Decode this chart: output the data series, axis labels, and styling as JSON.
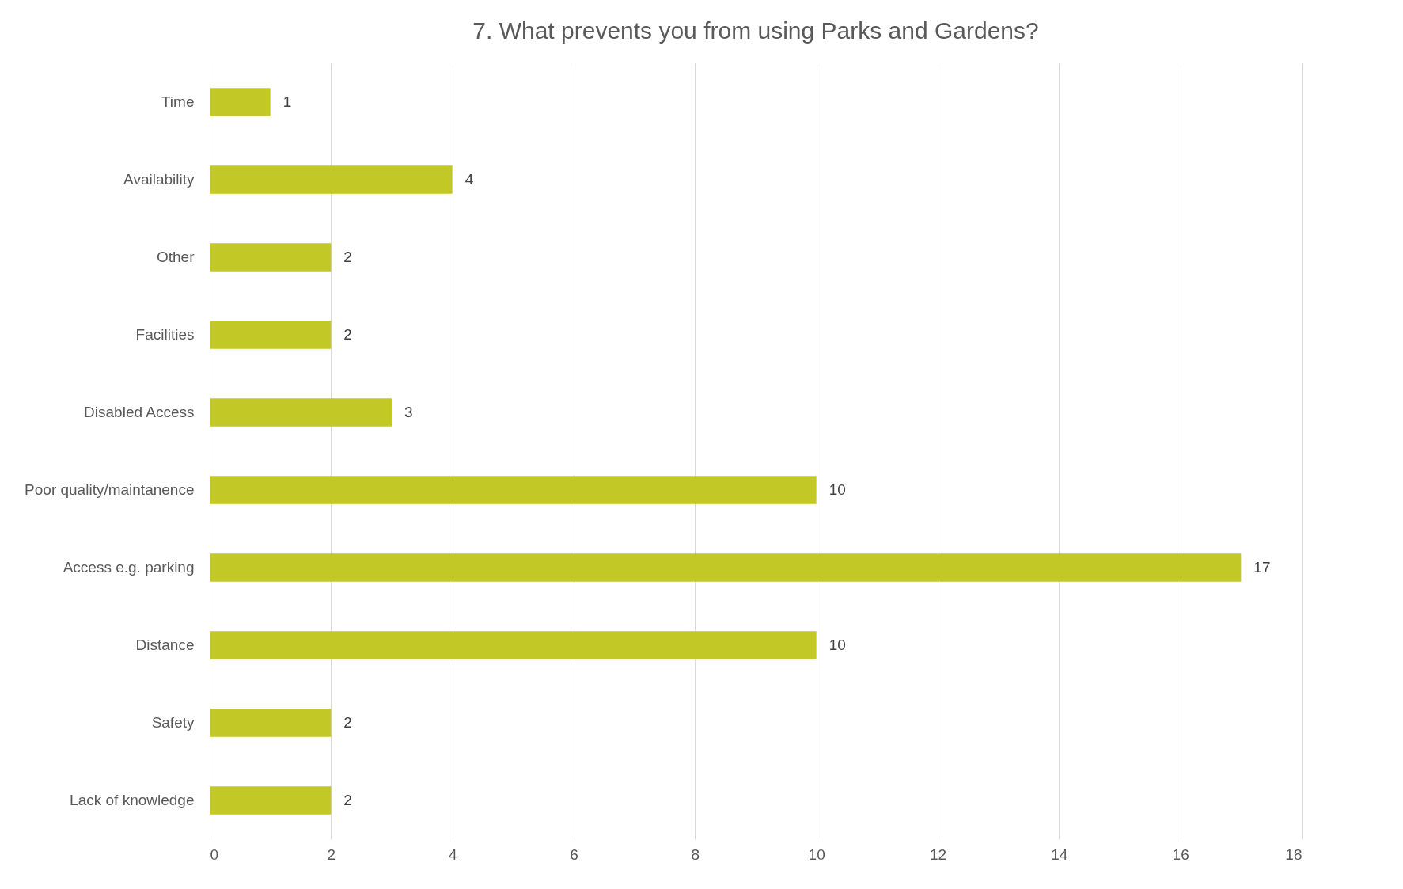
{
  "chart_data": {
    "type": "bar",
    "orientation": "horizontal",
    "title": "7. What prevents you from using Parks and Gardens?",
    "categories": [
      "Time",
      "Availability",
      "Other",
      "Facilities",
      "Disabled Access",
      "Poor quality/maintanence",
      "Access e.g. parking",
      "Distance",
      "Safety",
      "Lack of knowledge"
    ],
    "values": [
      1,
      4,
      2,
      2,
      3,
      10,
      17,
      10,
      2,
      2
    ],
    "color": "#c2c826",
    "xlim": [
      0,
      18
    ],
    "xticks": [
      0,
      2,
      4,
      6,
      8,
      10,
      12,
      14,
      16,
      18
    ],
    "grid": "x",
    "data_labels": true
  }
}
